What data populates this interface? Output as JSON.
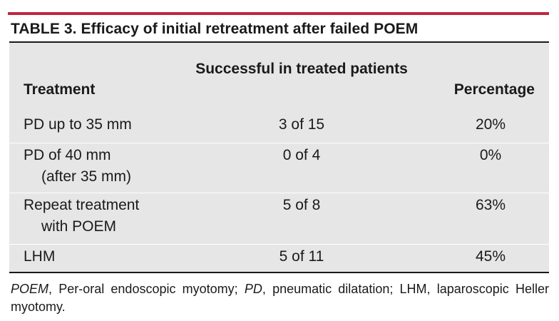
{
  "title": "TABLE 3. Efficacy of initial retreatment after failed POEM",
  "colors": {
    "accent_rule": "#c0263f",
    "table_background": "#e6e6e6"
  },
  "table": {
    "headers": {
      "treatment": "Treatment",
      "successful": "Successful in treated patients",
      "percentage": "Percentage"
    },
    "rows": [
      {
        "treatment_line1": "PD up to 35 mm",
        "treatment_line2": "",
        "successful": "3 of 15",
        "percentage": "20%"
      },
      {
        "treatment_line1": "PD of 40 mm",
        "treatment_line2": "(after 35 mm)",
        "successful": "0 of 4",
        "percentage": "0%"
      },
      {
        "treatment_line1": "Repeat treatment",
        "treatment_line2": "with POEM",
        "successful": "5 of 8",
        "percentage": "63%"
      },
      {
        "treatment_line1": "LHM",
        "treatment_line2": "",
        "successful": "5 of 11",
        "percentage": "45%"
      }
    ]
  },
  "footnote": {
    "abbr1": "POEM",
    "def1": ", Per-oral endoscopic myotomy; ",
    "abbr2": "PD",
    "def2": ", pneumatic dilatation; LHM, laparoscopic Heller myotomy."
  }
}
